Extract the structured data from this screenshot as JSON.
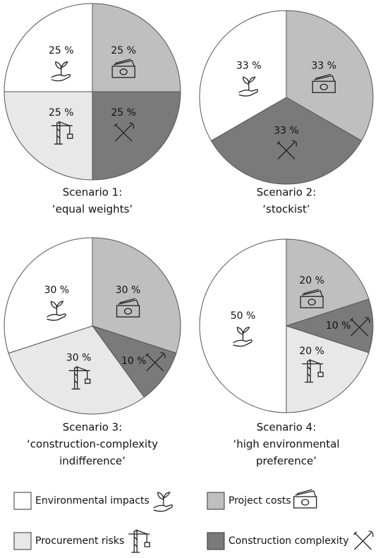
{
  "chart_data": [
    {
      "type": "pie",
      "title": [
        "Scenario 1:",
        "‘equal weights’"
      ],
      "categories": [
        "Project costs",
        "Construction complexity",
        "Procurement risks",
        "Environmental impacts"
      ],
      "values": [
        25,
        25,
        25,
        25
      ],
      "value_labels": [
        "25 %",
        "25 %",
        "25 %",
        "25 %"
      ],
      "colors": [
        "#bfbfbf",
        "#7a7a7a",
        "#e8e8e8",
        "#ffffff"
      ]
    },
    {
      "type": "pie",
      "title": [
        "Scenario 2:",
        "‘stockist’"
      ],
      "categories": [
        "Project costs",
        "Construction complexity",
        "Environmental impacts"
      ],
      "values": [
        33,
        33,
        33
      ],
      "value_labels": [
        "33 %",
        "33 %",
        "33 %"
      ],
      "colors": [
        "#bfbfbf",
        "#7a7a7a",
        "#ffffff"
      ]
    },
    {
      "type": "pie",
      "title": [
        "Scenario 3:",
        "‘construction-complexity",
        "indifference’"
      ],
      "categories": [
        "Project costs",
        "Construction complexity",
        "Procurement risks",
        "Environmental impacts"
      ],
      "values": [
        30,
        10,
        30,
        30
      ],
      "value_labels": [
        "30 %",
        "10 %",
        "30 %",
        "30 %"
      ],
      "colors": [
        "#bfbfbf",
        "#7a7a7a",
        "#e8e8e8",
        "#ffffff"
      ]
    },
    {
      "type": "pie",
      "title": [
        "Scenario 4:",
        "‘high environmental",
        "preference’"
      ],
      "categories": [
        "Project costs",
        "Construction complexity",
        "Procurement risks",
        "Environmental impacts"
      ],
      "values": [
        20,
        10,
        20,
        50
      ],
      "value_labels": [
        "20 %",
        "10 %",
        "20 %",
        "50 %"
      ],
      "colors": [
        "#bfbfbf",
        "#7a7a7a",
        "#e8e8e8",
        "#ffffff"
      ]
    }
  ]
}
